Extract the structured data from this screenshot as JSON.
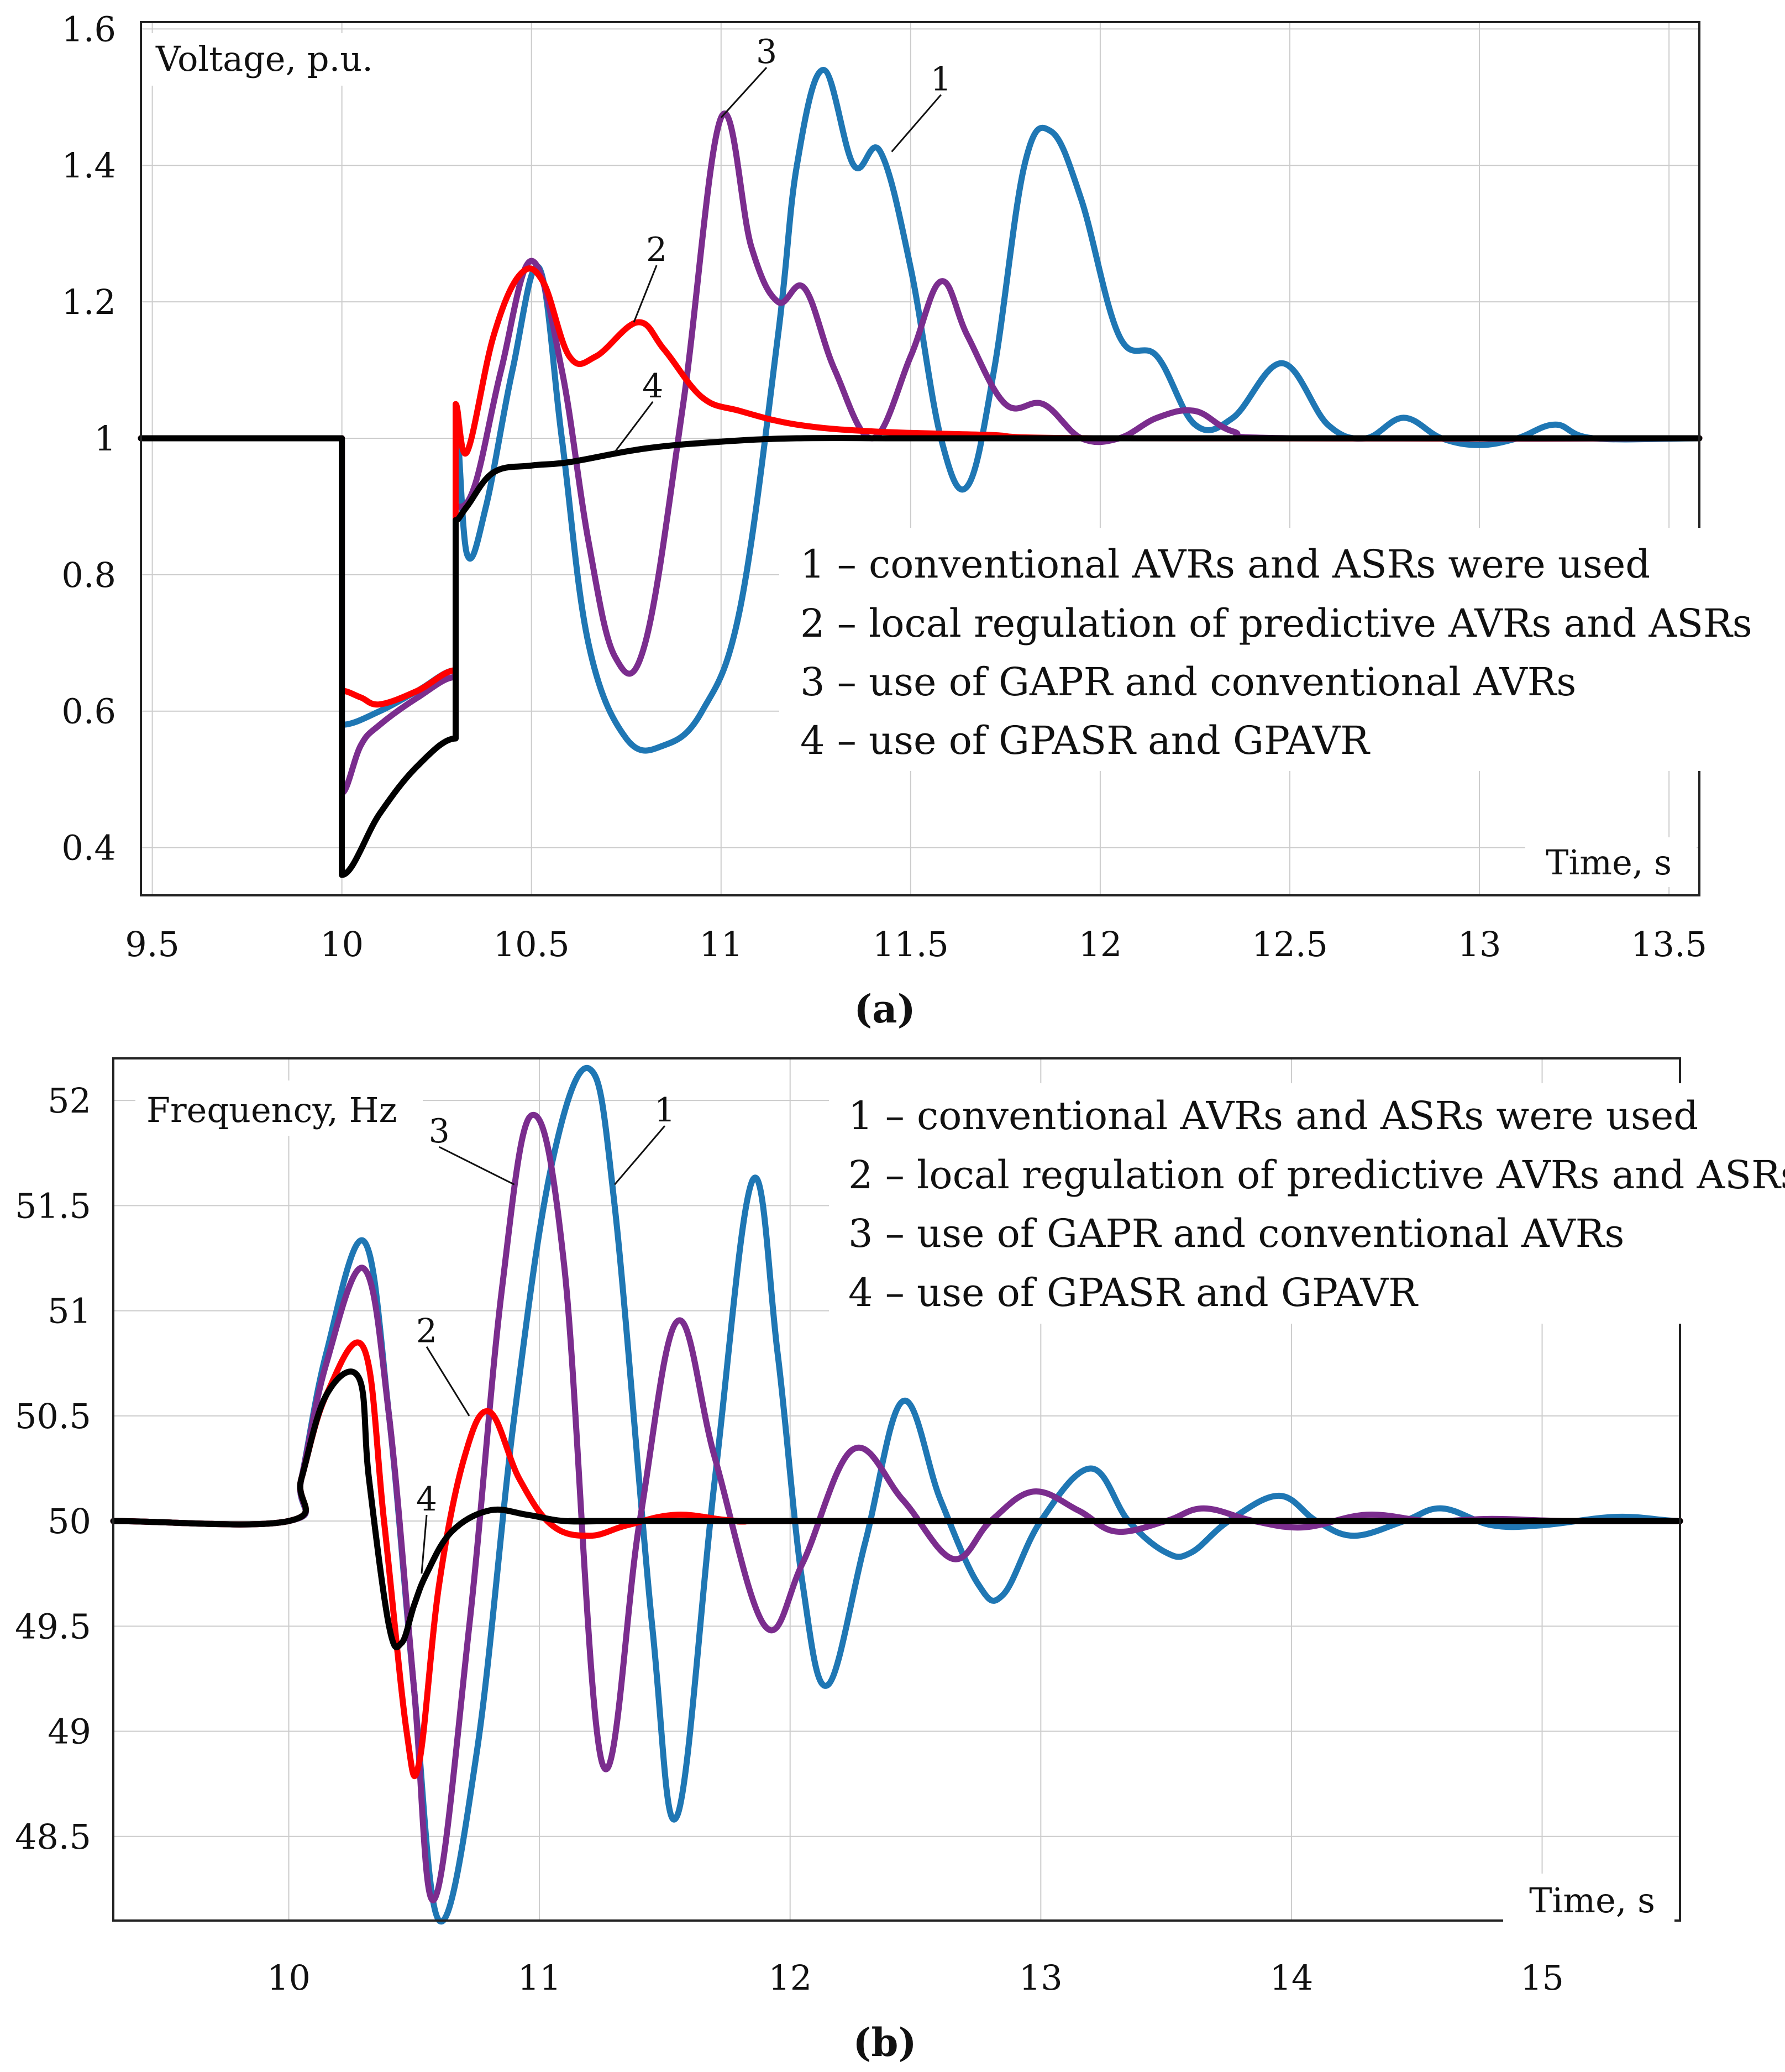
{
  "colors": {
    "series1": "#1f77b4",
    "series2": "#ff0000",
    "series3": "#7b2d8e",
    "series4": "#000000",
    "grid": "#cccccc",
    "text": "#111111"
  },
  "chart_data": [
    {
      "id": "a",
      "type": "line",
      "caption": "(a)",
      "ylabel": "Voltage, p.u.",
      "xlabel": "Time, s",
      "xlim": [
        9.47,
        13.58
      ],
      "ylim": [
        0.33,
        1.61
      ],
      "xticks": [
        9.5,
        10,
        10.5,
        11,
        11.5,
        12,
        12.5,
        13,
        13.5
      ],
      "xtick_labels": [
        "9.5",
        "10",
        "10.5",
        "11",
        "11.5",
        "12",
        "12.5",
        "13",
        "13.5"
      ],
      "yticks": [
        0.4,
        0.6,
        0.8,
        1.0,
        1.2,
        1.4,
        1.6
      ],
      "ytick_labels": [
        "0.4",
        "0.6",
        "0.8",
        "1",
        "1.2",
        "1.4",
        "1.6"
      ],
      "grid": true,
      "legend": [
        "1 – conventional AVRs and ASRs were used",
        "2 – local regulation of predictive AVRs and ASRs",
        "3 – use of GAPR and conventional AVRs",
        "4 – use of GPASR and GPAVR"
      ],
      "curve_labels": [
        {
          "text": "1",
          "series": "1",
          "at": [
            11.45,
            1.42
          ],
          "label_at": [
            11.58,
            1.51
          ]
        },
        {
          "text": "2",
          "series": "2",
          "at": [
            10.77,
            1.17
          ],
          "label_at": [
            10.83,
            1.26
          ]
        },
        {
          "text": "3",
          "series": "3",
          "at": [
            11.0,
            1.47
          ],
          "label_at": [
            11.12,
            1.55
          ]
        },
        {
          "text": "4",
          "series": "4",
          "at": [
            10.72,
            0.98
          ],
          "label_at": [
            10.82,
            1.06
          ]
        }
      ],
      "series": [
        {
          "name": "1",
          "x": [
            9.47,
            10.0,
            10.0,
            10.1,
            10.2,
            10.3,
            10.3,
            10.33,
            10.38,
            10.45,
            10.52,
            10.58,
            10.65,
            10.75,
            10.85,
            10.95,
            11.05,
            11.15,
            11.2,
            11.27,
            11.35,
            11.42,
            11.5,
            11.58,
            11.65,
            11.72,
            11.8,
            11.87,
            11.95,
            12.05,
            12.15,
            12.25,
            12.35,
            12.48,
            12.6,
            12.7,
            12.8,
            12.9,
            13.0,
            13.1,
            13.2,
            13.3,
            13.58
          ],
          "y": [
            1.0,
            1.0,
            0.58,
            0.6,
            0.63,
            0.66,
            1.03,
            0.83,
            0.9,
            1.1,
            1.25,
            1.0,
            0.7,
            0.56,
            0.55,
            0.6,
            0.75,
            1.15,
            1.4,
            1.54,
            1.4,
            1.42,
            1.25,
            1.0,
            0.93,
            1.1,
            1.4,
            1.45,
            1.35,
            1.15,
            1.12,
            1.02,
            1.03,
            1.11,
            1.02,
            1.0,
            1.03,
            1.0,
            0.99,
            1.0,
            1.02,
            1.0,
            1.0
          ]
        },
        {
          "name": "2",
          "x": [
            9.47,
            10.0,
            10.0,
            10.05,
            10.1,
            10.2,
            10.3,
            10.3,
            10.33,
            10.4,
            10.47,
            10.53,
            10.6,
            10.67,
            10.78,
            10.85,
            10.95,
            11.05,
            11.2,
            11.4,
            11.7,
            12.0,
            13.58
          ],
          "y": [
            1.0,
            1.0,
            0.63,
            0.62,
            0.61,
            0.63,
            0.66,
            1.05,
            0.98,
            1.15,
            1.24,
            1.23,
            1.12,
            1.12,
            1.17,
            1.13,
            1.06,
            1.04,
            1.02,
            1.01,
            1.005,
            1.0,
            1.0
          ]
        },
        {
          "name": "3",
          "x": [
            9.47,
            10.0,
            10.0,
            10.05,
            10.1,
            10.2,
            10.3,
            10.3,
            10.35,
            10.42,
            10.5,
            10.58,
            10.65,
            10.72,
            10.8,
            10.9,
            11.0,
            11.08,
            11.15,
            11.22,
            11.3,
            11.4,
            11.5,
            11.58,
            11.65,
            11.75,
            11.85,
            11.95,
            12.05,
            12.15,
            12.25,
            12.35,
            12.5,
            13.58
          ],
          "y": [
            1.0,
            1.0,
            0.48,
            0.55,
            0.58,
            0.62,
            0.65,
            0.9,
            0.93,
            1.1,
            1.26,
            1.1,
            0.85,
            0.68,
            0.7,
            1.05,
            1.47,
            1.28,
            1.2,
            1.22,
            1.1,
            1.0,
            1.12,
            1.23,
            1.15,
            1.05,
            1.05,
            1.0,
            1.0,
            1.03,
            1.04,
            1.01,
            1.0,
            1.0
          ]
        },
        {
          "name": "4",
          "x": [
            9.47,
            10.0,
            10.0,
            10.1,
            10.2,
            10.3,
            10.3,
            10.33,
            10.4,
            10.5,
            10.6,
            10.8,
            11.0,
            11.2,
            11.5,
            12.0,
            13.58
          ],
          "y": [
            1.0,
            1.0,
            0.36,
            0.45,
            0.52,
            0.56,
            0.88,
            0.9,
            0.95,
            0.96,
            0.965,
            0.985,
            0.995,
            1.0,
            1.0,
            1.0,
            1.0
          ]
        }
      ]
    },
    {
      "id": "b",
      "type": "line",
      "caption": "(b)",
      "ylabel": "Frequency, Hz",
      "xlabel": "Time, s",
      "xlim": [
        9.3,
        15.55
      ],
      "ylim": [
        48.1,
        52.2
      ],
      "xticks": [
        10,
        11,
        12,
        13,
        14,
        15
      ],
      "xtick_labels": [
        "10",
        "11",
        "12",
        "13",
        "14",
        "15"
      ],
      "yticks": [
        48.5,
        49,
        49.5,
        50,
        50.5,
        51,
        51.5,
        52
      ],
      "ytick_labels": [
        "48.5",
        "49",
        "49.5",
        "50",
        "50.5",
        "51",
        "51.5",
        "52"
      ],
      "grid": true,
      "legend": [
        "1 – conventional AVRs and ASRs were used",
        "2 – local regulation of predictive AVRs and ASRs",
        "3 – use of GAPR and conventional AVRs",
        "4 – use of GPASR and GPAVR"
      ],
      "curve_labels": [
        {
          "text": "1",
          "series": "1",
          "at": [
            11.3,
            51.6
          ],
          "label_at": [
            11.5,
            51.9
          ]
        },
        {
          "text": "2",
          "series": "2",
          "at": [
            10.72,
            50.5
          ],
          "label_at": [
            10.55,
            50.85
          ]
        },
        {
          "text": "3",
          "series": "3",
          "at": [
            10.9,
            51.6
          ],
          "label_at": [
            10.6,
            51.8
          ]
        },
        {
          "text": "4",
          "series": "4",
          "at": [
            10.53,
            49.75
          ],
          "label_at": [
            10.55,
            50.05
          ]
        }
      ],
      "series": [
        {
          "name": "1",
          "x": [
            9.3,
            10.0,
            10.05,
            10.15,
            10.3,
            10.4,
            10.5,
            10.6,
            10.75,
            10.9,
            11.05,
            11.2,
            11.3,
            11.45,
            11.55,
            11.7,
            11.85,
            11.95,
            12.05,
            12.15,
            12.3,
            12.45,
            12.6,
            12.75,
            12.85,
            13.0,
            13.2,
            13.35,
            13.5,
            13.6,
            13.75,
            13.95,
            14.1,
            14.25,
            14.45,
            14.6,
            14.8,
            15.0,
            15.3,
            15.55
          ],
          "y": [
            50.0,
            50.0,
            50.2,
            50.8,
            51.33,
            50.5,
            49.2,
            48.1,
            48.9,
            50.5,
            51.7,
            52.15,
            51.5,
            49.5,
            48.6,
            50.2,
            51.62,
            50.8,
            49.7,
            49.22,
            49.9,
            50.57,
            50.1,
            49.7,
            49.65,
            50.0,
            50.25,
            50.0,
            49.85,
            49.85,
            50.0,
            50.12,
            50.0,
            49.93,
            50.0,
            50.06,
            49.98,
            49.98,
            50.02,
            50.0
          ]
        },
        {
          "name": "2",
          "x": [
            9.3,
            10.0,
            10.05,
            10.15,
            10.3,
            10.38,
            10.47,
            10.52,
            10.6,
            10.7,
            10.8,
            10.92,
            11.05,
            11.2,
            11.35,
            11.55,
            11.8,
            12.2,
            15.55
          ],
          "y": [
            50.0,
            50.0,
            50.2,
            50.6,
            50.82,
            50.0,
            49.0,
            48.85,
            49.7,
            50.3,
            50.52,
            50.2,
            49.98,
            49.93,
            49.98,
            50.03,
            50.0,
            50.0,
            50.0
          ]
        },
        {
          "name": "3",
          "x": [
            9.3,
            10.0,
            10.05,
            10.15,
            10.3,
            10.4,
            10.5,
            10.58,
            10.72,
            10.85,
            10.97,
            11.1,
            11.25,
            11.4,
            11.55,
            11.7,
            11.9,
            12.05,
            12.25,
            12.45,
            12.65,
            12.8,
            12.97,
            13.15,
            13.3,
            13.5,
            13.65,
            13.85,
            14.05,
            14.3,
            14.55,
            14.8,
            15.1,
            15.55
          ],
          "y": [
            50.0,
            50.0,
            50.2,
            50.75,
            51.2,
            50.5,
            49.2,
            48.2,
            49.5,
            51.1,
            51.93,
            51.2,
            48.85,
            50.0,
            50.95,
            50.3,
            49.5,
            49.8,
            50.34,
            50.1,
            49.82,
            50.0,
            50.14,
            50.05,
            49.95,
            50.0,
            50.06,
            50.0,
            49.97,
            50.03,
            50.0,
            50.01,
            50.0,
            50.0
          ]
        },
        {
          "name": "4",
          "x": [
            9.3,
            10.0,
            10.05,
            10.15,
            10.28,
            10.32,
            10.4,
            10.45,
            10.5,
            10.55,
            10.65,
            10.8,
            10.95,
            11.1,
            11.3,
            11.5,
            15.55
          ],
          "y": [
            50.0,
            50.0,
            50.2,
            50.6,
            50.68,
            50.2,
            49.5,
            49.42,
            49.6,
            49.75,
            49.95,
            50.05,
            50.03,
            50.0,
            50.0,
            50.0,
            50.0
          ]
        }
      ]
    }
  ]
}
